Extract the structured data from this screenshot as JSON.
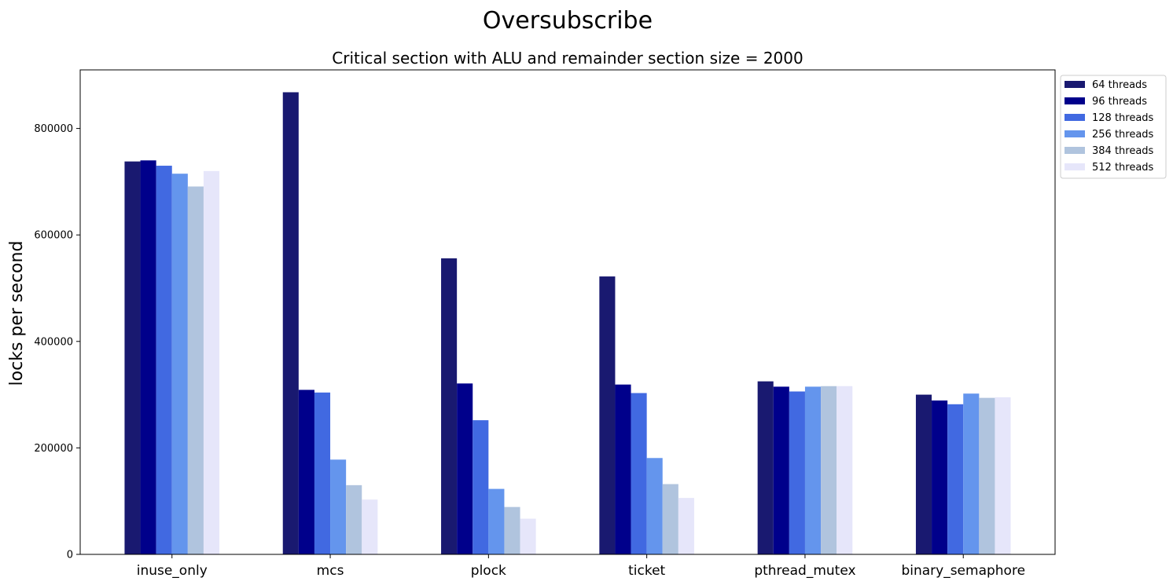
{
  "chart_data": {
    "type": "bar",
    "title": "Oversubscribe",
    "subtitle": "Critical section with ALU and remainder section size = 2000",
    "xlabel": "",
    "ylabel": "locks per second",
    "ylim": [
      0,
      910000
    ],
    "yticks": [
      0,
      200000,
      400000,
      600000,
      800000
    ],
    "ytick_labels": [
      "0",
      "200000",
      "400000",
      "600000",
      "800000"
    ],
    "grid": false,
    "legend_position": "outside-top-right",
    "categories": [
      "inuse_only",
      "mcs",
      "plock",
      "ticket",
      "pthread_mutex",
      "binary_semaphore"
    ],
    "series": [
      {
        "name": "64 threads",
        "color": "#191970",
        "values": [
          738000,
          868000,
          556000,
          522000,
          325000,
          300000
        ]
      },
      {
        "name": "96 threads",
        "color": "#00008b",
        "values": [
          740000,
          309000,
          321000,
          319000,
          315000,
          289000
        ]
      },
      {
        "name": "128 threads",
        "color": "#4169e1",
        "values": [
          730000,
          304000,
          252000,
          303000,
          306000,
          282000
        ]
      },
      {
        "name": "256 threads",
        "color": "#6495ed",
        "values": [
          715000,
          178000,
          123000,
          181000,
          315000,
          302000
        ]
      },
      {
        "name": "384 threads",
        "color": "#b0c4de",
        "values": [
          691000,
          130000,
          89000,
          132000,
          316000,
          294000
        ]
      },
      {
        "name": "512 threads",
        "color": "#e6e6fa",
        "values": [
          720000,
          103000,
          67000,
          106000,
          316000,
          295000
        ]
      }
    ]
  }
}
